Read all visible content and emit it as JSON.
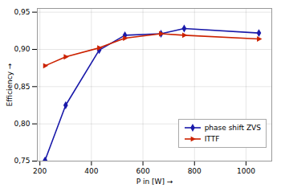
{
  "chart_data": {
    "type": "line",
    "x": [
      220,
      300,
      430,
      530,
      670,
      760,
      1050
    ],
    "series": [
      {
        "name": "phase shift ZVS",
        "color": "#1a1aaa",
        "marker": "diamond",
        "values": [
          0.751,
          0.825,
          0.899,
          0.919,
          0.921,
          0.928,
          0.922
        ]
      },
      {
        "name": "ITTF",
        "color": "#cc2200",
        "marker": "triangle-right",
        "values": [
          0.878,
          0.89,
          0.902,
          0.915,
          0.921,
          0.919,
          0.914
        ]
      }
    ],
    "xlabel": "P in [W]",
    "ylabel": "Efficiency",
    "xlim": [
      190,
      1100
    ],
    "ylim": [
      0.75,
      0.955
    ],
    "xticks": [
      200,
      400,
      600,
      800,
      1000
    ],
    "yticks": [
      {
        "value": 0.75,
        "label": "0,75"
      },
      {
        "value": 0.8,
        "label": "0,80"
      },
      {
        "value": 0.85,
        "label": "0,85"
      },
      {
        "value": 0.9,
        "label": "0,90"
      },
      {
        "value": 0.95,
        "label": "0,95"
      }
    ],
    "grid": true,
    "legend": "lower right"
  }
}
